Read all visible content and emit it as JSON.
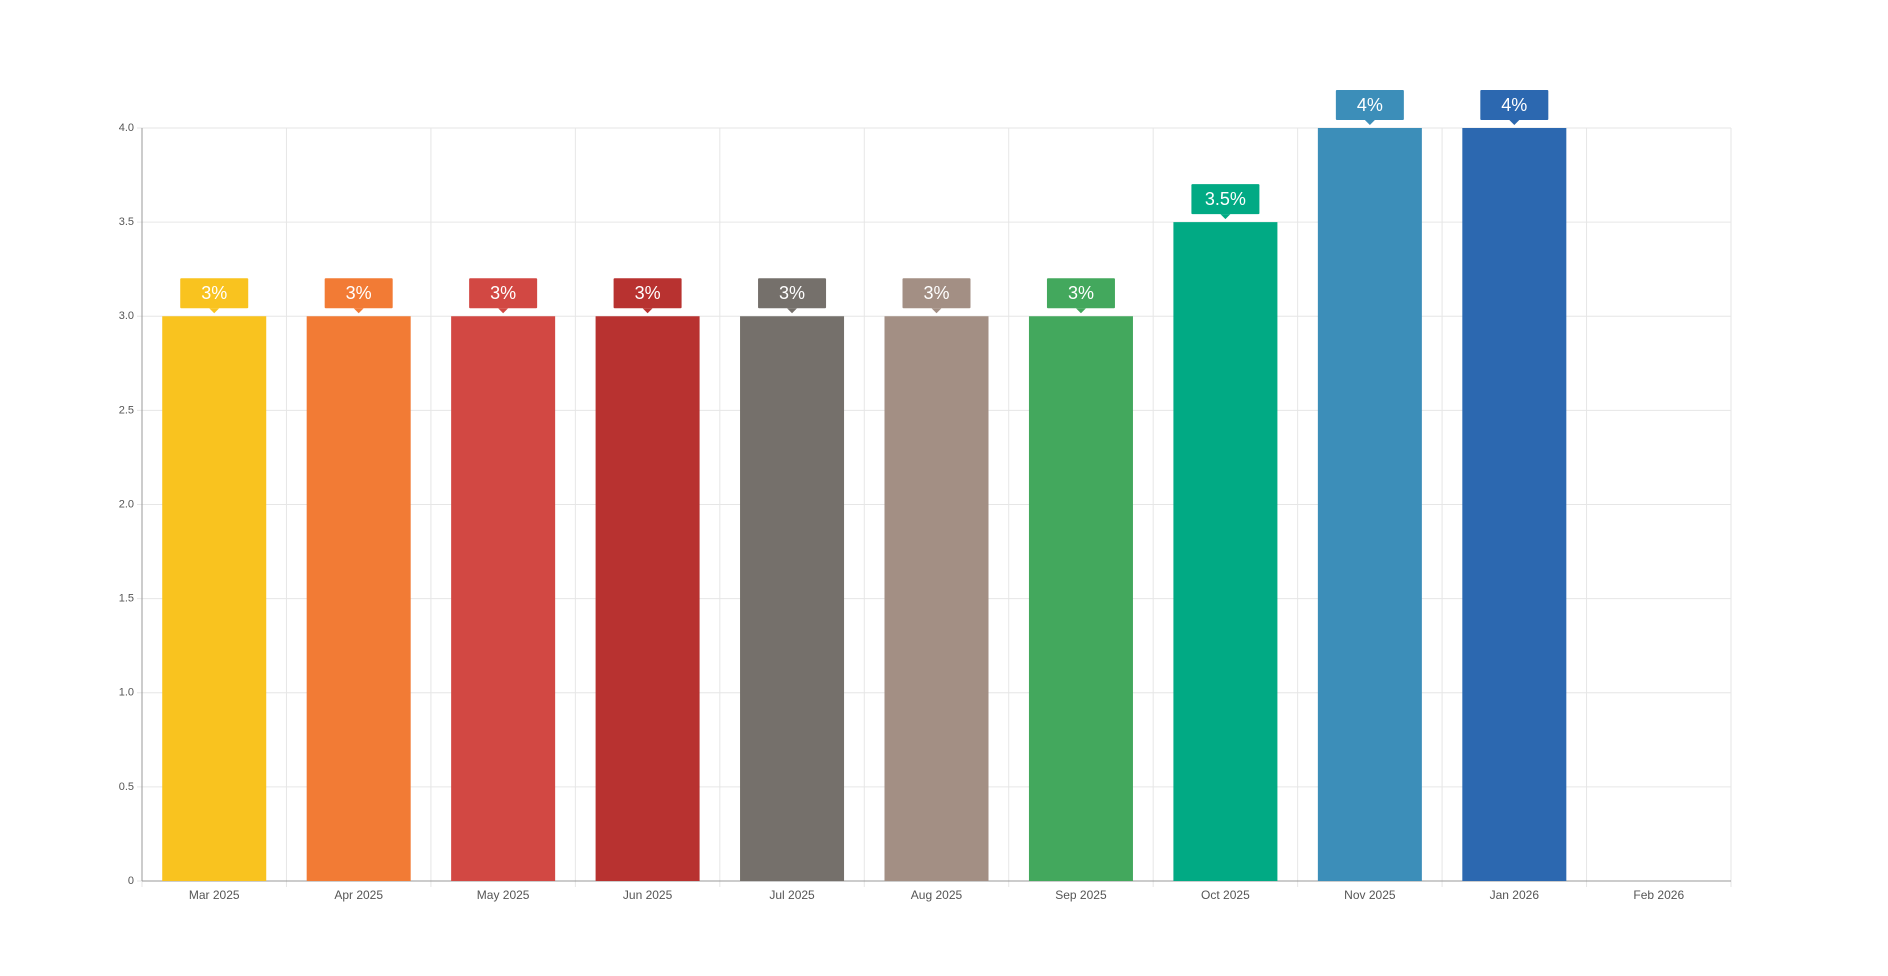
{
  "chart_data": {
    "type": "bar",
    "categories": [
      "Mar 2025",
      "Apr 2025",
      "May 2025",
      "Jun 2025",
      "Jul 2025",
      "Aug 2025",
      "Sep 2025",
      "Oct 2025",
      "Nov 2025",
      "Jan 2026",
      "Feb 2026"
    ],
    "values": [
      3,
      3,
      3,
      3,
      3,
      3,
      3,
      3.5,
      4,
      4,
      null
    ],
    "value_labels": [
      "3%",
      "3%",
      "3%",
      "3%",
      "3%",
      "3%",
      "3%",
      "3.5%",
      "4%",
      "4%",
      null
    ],
    "colors": [
      "#f9c31f",
      "#f27b35",
      "#d24843",
      "#b83230",
      "#75706b",
      "#a38f84",
      "#43a85d",
      "#01aa84",
      "#3c8eb9",
      "#2c68b0",
      null
    ],
    "ylim": [
      0,
      4
    ],
    "yticks": [
      0,
      0.5,
      {
        "value": 1,
        "label": "1.0"
      },
      1.5,
      {
        "value": 2,
        "label": "2.0"
      },
      2.5,
      {
        "value": 3,
        "label": "3.0"
      },
      3.5,
      {
        "value": 4,
        "label": "4.0"
      }
    ],
    "grid": true
  }
}
